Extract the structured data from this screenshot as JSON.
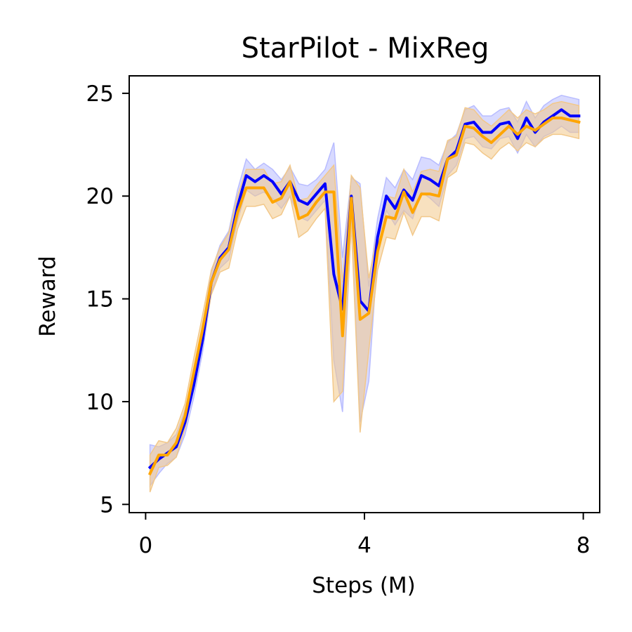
{
  "chart_data": {
    "type": "line",
    "title": "StarPilot - MixReg",
    "xlabel": "Steps (M)",
    "ylabel": "Reward",
    "xlim": [
      -0.3,
      8.3
    ],
    "ylim": [
      4.6,
      25.85
    ],
    "xticks": [
      {
        "value": 0,
        "label": "0"
      },
      {
        "value": 4,
        "label": "4"
      },
      {
        "value": 8,
        "label": "8"
      }
    ],
    "yticks": [
      {
        "value": 5,
        "label": "5"
      },
      {
        "value": 10,
        "label": "10"
      },
      {
        "value": 15,
        "label": "15"
      },
      {
        "value": 20,
        "label": "20"
      },
      {
        "value": 25,
        "label": "25"
      }
    ],
    "grid": false,
    "x": [
      0.08,
      0.24,
      0.4,
      0.56,
      0.72,
      0.88,
      1.04,
      1.2,
      1.36,
      1.52,
      1.68,
      1.84,
      2.0,
      2.16,
      2.32,
      2.48,
      2.64,
      2.8,
      2.96,
      3.12,
      3.28,
      3.44,
      3.6,
      3.76,
      3.92,
      4.08,
      4.24,
      4.4,
      4.56,
      4.72,
      4.88,
      5.04,
      5.2,
      5.36,
      5.52,
      5.68,
      5.84,
      6.0,
      6.16,
      6.32,
      6.48,
      6.64,
      6.8,
      6.96,
      7.12,
      7.28,
      7.44,
      7.6,
      7.76,
      7.92
    ],
    "series": [
      {
        "color": "#0000ff",
        "band_color": "#b8bcff",
        "mean": [
          6.8,
          7.2,
          7.5,
          7.8,
          9.0,
          10.8,
          13.0,
          15.8,
          17.0,
          17.5,
          19.5,
          21.0,
          20.7,
          21.0,
          20.7,
          20.1,
          20.7,
          19.8,
          19.6,
          20.1,
          20.6,
          16.2,
          14.5,
          20.0,
          14.9,
          14.4,
          18.0,
          20.0,
          19.4,
          20.3,
          19.8,
          21.0,
          20.8,
          20.5,
          21.8,
          22.2,
          23.5,
          23.6,
          23.1,
          23.1,
          23.5,
          23.6,
          22.8,
          23.8,
          23.1,
          23.6,
          23.9,
          24.2,
          23.9,
          23.9
        ],
        "lower": [
          5.9,
          6.5,
          7.0,
          7.3,
          8.4,
          10.2,
          12.4,
          15.3,
          16.5,
          16.9,
          18.8,
          20.3,
          20.0,
          20.2,
          19.9,
          19.4,
          20.0,
          19.0,
          18.8,
          19.3,
          19.8,
          12.0,
          9.5,
          18.8,
          9.0,
          11.0,
          17.2,
          19.3,
          18.6,
          19.3,
          18.9,
          20.2,
          19.9,
          19.5,
          21.0,
          21.5,
          22.8,
          22.9,
          22.4,
          22.3,
          22.8,
          22.9,
          22.1,
          23.0,
          22.4,
          22.9,
          23.1,
          23.4,
          23.1,
          23.1
        ],
        "upper": [
          7.9,
          7.8,
          8.0,
          8.4,
          9.6,
          11.4,
          13.6,
          16.3,
          17.6,
          18.3,
          20.3,
          21.8,
          21.3,
          21.6,
          21.3,
          20.8,
          21.4,
          20.6,
          20.5,
          20.8,
          21.3,
          22.6,
          17.0,
          20.9,
          20.6,
          15.6,
          18.9,
          20.9,
          20.4,
          21.3,
          20.8,
          21.9,
          21.8,
          21.5,
          22.6,
          23.0,
          24.2,
          24.4,
          23.9,
          23.9,
          24.2,
          24.3,
          23.6,
          24.6,
          23.8,
          24.4,
          24.7,
          24.9,
          24.8,
          24.7
        ]
      },
      {
        "color": "#ffa500",
        "band_color": "#f2c88a",
        "mean": [
          6.5,
          7.4,
          7.4,
          8.0,
          9.3,
          11.4,
          13.5,
          15.8,
          16.9,
          17.4,
          19.2,
          20.4,
          20.4,
          20.4,
          19.7,
          19.9,
          20.7,
          18.9,
          19.1,
          19.7,
          20.2,
          20.2,
          13.2,
          19.9,
          14.0,
          14.3,
          17.3,
          19.0,
          18.9,
          20.2,
          19.2,
          20.1,
          20.1,
          20.0,
          21.8,
          22.0,
          23.4,
          23.3,
          22.9,
          22.6,
          23.0,
          23.4,
          23.0,
          23.4,
          23.2,
          23.5,
          23.8,
          23.8,
          23.7,
          23.6
        ],
        "lower": [
          5.6,
          6.8,
          6.9,
          7.3,
          8.7,
          10.7,
          12.8,
          15.2,
          16.3,
          16.5,
          18.4,
          19.5,
          19.5,
          19.6,
          18.9,
          19.1,
          20.0,
          18.0,
          18.3,
          18.9,
          19.4,
          10.0,
          10.5,
          18.6,
          8.5,
          12.5,
          16.4,
          18.0,
          17.9,
          19.2,
          18.1,
          19.0,
          19.0,
          18.8,
          20.9,
          21.2,
          22.6,
          22.5,
          22.1,
          21.8,
          22.3,
          22.6,
          22.2,
          22.6,
          22.4,
          22.8,
          23.0,
          23.0,
          22.9,
          22.8
        ],
        "upper": [
          7.4,
          8.1,
          8.0,
          8.7,
          9.9,
          12.1,
          14.2,
          16.4,
          17.5,
          18.2,
          20.0,
          21.3,
          21.3,
          21.3,
          20.6,
          20.7,
          21.5,
          19.8,
          19.9,
          20.5,
          21.0,
          21.5,
          15.8,
          21.0,
          20.4,
          16.0,
          18.2,
          20.0,
          19.9,
          21.3,
          20.2,
          21.2,
          21.3,
          21.2,
          22.7,
          22.9,
          24.3,
          24.2,
          23.7,
          23.4,
          23.8,
          24.2,
          23.8,
          24.2,
          24.0,
          24.2,
          24.5,
          24.6,
          24.5,
          24.4
        ]
      }
    ]
  }
}
